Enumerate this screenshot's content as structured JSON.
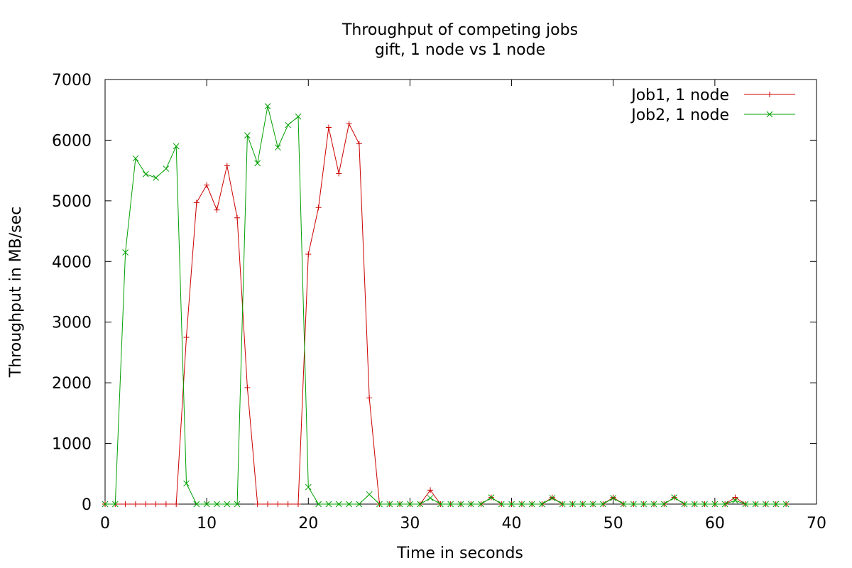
{
  "chart_data": {
    "type": "line",
    "title": "Throughput of competing jobs",
    "subtitle": "gift, 1 node vs 1 node",
    "xlabel": "Time in seconds",
    "ylabel": "Throughput in MB/sec",
    "xlim": [
      0,
      70
    ],
    "ylim": [
      0,
      7000
    ],
    "xticks": [
      0,
      10,
      20,
      30,
      40,
      50,
      60,
      70
    ],
    "yticks": [
      0,
      1000,
      2000,
      3000,
      4000,
      5000,
      6000,
      7000
    ],
    "grid": false,
    "legend_position": "top-right",
    "series": [
      {
        "name": "Job1, 1 node",
        "color": "#cc0000",
        "marker": "plus",
        "x": [
          0,
          1,
          2,
          3,
          4,
          5,
          6,
          7,
          8,
          9,
          10,
          11,
          12,
          13,
          14,
          15,
          16,
          17,
          18,
          19,
          20,
          21,
          22,
          23,
          24,
          25,
          26,
          27,
          28,
          29,
          30,
          31,
          32,
          33,
          34,
          35,
          36,
          37,
          38,
          39,
          40,
          41,
          42,
          43,
          44,
          45,
          46,
          47,
          48,
          49,
          50,
          51,
          52,
          53,
          54,
          55,
          56,
          57,
          58,
          59,
          60,
          61,
          62,
          63,
          64,
          65,
          66,
          67
        ],
        "y": [
          0,
          0,
          0,
          0,
          0,
          0,
          0,
          0,
          2750,
          4970,
          5260,
          4850,
          5580,
          4720,
          1920,
          0,
          0,
          0,
          0,
          0,
          4120,
          4890,
          6210,
          5450,
          6270,
          5940,
          1750,
          0,
          0,
          0,
          0,
          0,
          230,
          0,
          0,
          0,
          0,
          0,
          110,
          0,
          0,
          0,
          0,
          0,
          110,
          0,
          0,
          0,
          0,
          0,
          110,
          0,
          0,
          0,
          0,
          0,
          110,
          0,
          0,
          0,
          0,
          0,
          110,
          0,
          0,
          0,
          0,
          0
        ]
      },
      {
        "name": "Job2, 1 node",
        "color": "#00a000",
        "marker": "cross",
        "x": [
          0,
          1,
          2,
          3,
          4,
          5,
          6,
          7,
          8,
          9,
          10,
          11,
          12,
          13,
          14,
          15,
          16,
          17,
          18,
          19,
          20,
          21,
          22,
          23,
          24,
          25,
          26,
          27,
          28,
          29,
          30,
          31,
          32,
          33,
          34,
          35,
          36,
          37,
          38,
          39,
          40,
          41,
          42,
          43,
          44,
          45,
          46,
          47,
          48,
          49,
          50,
          51,
          52,
          53,
          54,
          55,
          56,
          57,
          58,
          59,
          60,
          61,
          62,
          63,
          64,
          65,
          66,
          67
        ],
        "y": [
          0,
          0,
          4150,
          5700,
          5440,
          5380,
          5530,
          5900,
          340,
          0,
          0,
          0,
          0,
          0,
          6080,
          5620,
          6560,
          5880,
          6250,
          6390,
          280,
          0,
          0,
          0,
          0,
          0,
          160,
          0,
          0,
          0,
          0,
          0,
          100,
          0,
          0,
          0,
          0,
          0,
          110,
          0,
          0,
          0,
          0,
          0,
          100,
          0,
          0,
          0,
          0,
          0,
          100,
          0,
          0,
          0,
          0,
          0,
          110,
          0,
          0,
          0,
          0,
          0,
          60,
          0,
          0,
          0,
          0,
          0
        ]
      }
    ]
  }
}
